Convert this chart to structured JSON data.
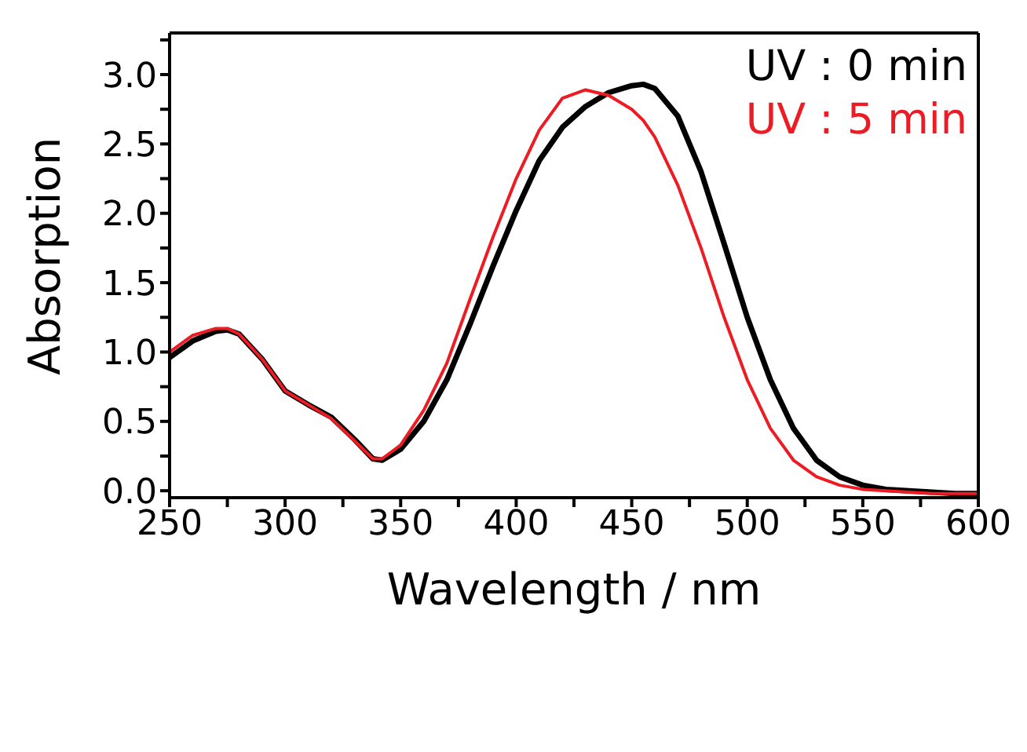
{
  "chart_data": {
    "type": "line",
    "xlabel": "Wavelength / nm",
    "ylabel": "Absorption",
    "x": [
      250,
      260,
      270,
      275,
      280,
      290,
      300,
      310,
      320,
      330,
      338,
      342,
      350,
      360,
      370,
      380,
      390,
      400,
      410,
      420,
      430,
      440,
      450,
      455,
      460,
      470,
      480,
      490,
      500,
      510,
      520,
      530,
      540,
      550,
      560,
      570,
      580,
      590,
      600
    ],
    "series": [
      {
        "name": "UV : 0 min",
        "color": "#000000",
        "values": [
          0.96,
          1.08,
          1.15,
          1.16,
          1.13,
          0.95,
          0.72,
          0.62,
          0.53,
          0.37,
          0.23,
          0.22,
          0.3,
          0.5,
          0.8,
          1.2,
          1.62,
          2.02,
          2.38,
          2.62,
          2.77,
          2.87,
          2.92,
          2.93,
          2.9,
          2.7,
          2.3,
          1.78,
          1.25,
          0.8,
          0.45,
          0.22,
          0.1,
          0.04,
          0.01,
          0.0,
          -0.01,
          -0.02,
          -0.02
        ]
      },
      {
        "name": "UV : 5 min",
        "color": "#ed1c24",
        "values": [
          1.0,
          1.12,
          1.17,
          1.17,
          1.13,
          0.95,
          0.72,
          0.62,
          0.52,
          0.36,
          0.23,
          0.23,
          0.33,
          0.58,
          0.92,
          1.38,
          1.83,
          2.25,
          2.6,
          2.83,
          2.89,
          2.85,
          2.75,
          2.67,
          2.55,
          2.2,
          1.75,
          1.25,
          0.8,
          0.45,
          0.22,
          0.1,
          0.04,
          0.01,
          0.0,
          -0.01,
          -0.02,
          -0.02,
          -0.02
        ]
      }
    ],
    "xlim": [
      250,
      600
    ],
    "xticks": [
      250,
      {
        "value": 275,
        "label": null
      },
      300,
      {
        "value": 325,
        "label": null
      },
      350,
      {
        "value": 375,
        "label": null
      },
      400,
      {
        "value": 425,
        "label": null
      },
      450,
      {
        "value": 475,
        "label": null
      },
      500,
      {
        "value": 525,
        "label": null
      },
      550,
      {
        "value": 575,
        "label": null
      },
      600
    ],
    "ylim": [
      -0.05,
      3.3
    ],
    "yticks": [
      {
        "value": 0,
        "label": "0.0"
      },
      {
        "value": 0.25,
        "label": null
      },
      {
        "value": 0.5,
        "label": "0.5"
      },
      {
        "value": 0.75,
        "label": null
      },
      {
        "value": 1,
        "label": "1.0"
      },
      {
        "value": 1.25,
        "label": null
      },
      {
        "value": 1.5,
        "label": "1.5"
      },
      {
        "value": 1.75,
        "label": null
      },
      {
        "value": 2,
        "label": "2.0"
      },
      {
        "value": 2.25,
        "label": null
      },
      {
        "value": 2.5,
        "label": "2.5"
      },
      {
        "value": 2.75,
        "label": null
      },
      {
        "value": 3,
        "label": "3.0"
      },
      {
        "value": 3.25,
        "label": null
      }
    ],
    "legend": "top right",
    "grid": false,
    "marker": "none",
    "line_style": "solid"
  }
}
